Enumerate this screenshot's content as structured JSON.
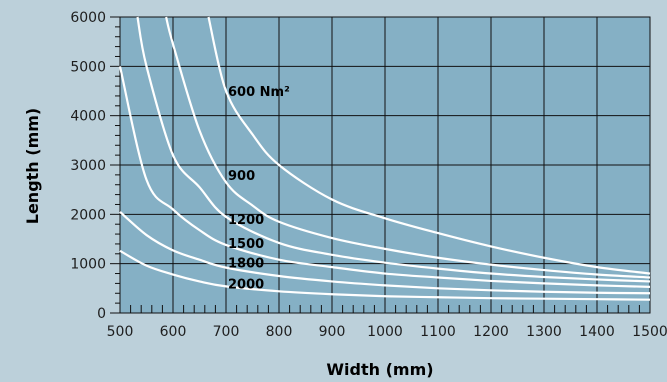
{
  "chart_data": {
    "type": "line",
    "title": "",
    "xlabel": "Width (mm)",
    "ylabel": "Length (mm)",
    "xlim": [
      500,
      1500
    ],
    "ylim": [
      0,
      6000
    ],
    "x_ticks": [
      500,
      600,
      700,
      800,
      900,
      1000,
      1100,
      1200,
      1300,
      1400,
      1500
    ],
    "y_ticks": [
      0,
      1000,
      2000,
      3000,
      4000,
      5000,
      6000
    ],
    "grid": true,
    "colors": {
      "plot_bg": "#85b0c5",
      "page_bg": "#bcd0da",
      "grid": "#111111",
      "curve": "#ffffff"
    },
    "series": [
      {
        "name": "600 Nm²",
        "x": [
          667,
          700,
          750,
          800,
          900,
          1000,
          1100,
          1200,
          1300,
          1400,
          1500
        ],
        "y": [
          6000,
          4500,
          3620,
          3000,
          2300,
          1920,
          1620,
          1350,
          1120,
          930,
          800
        ]
      },
      {
        "name": "900",
        "x": [
          587,
          600,
          650,
          700,
          750,
          800,
          900,
          1000,
          1100,
          1200,
          1300,
          1400,
          1500
        ],
        "y": [
          6000,
          5450,
          3700,
          2650,
          2180,
          1850,
          1520,
          1300,
          1120,
          980,
          870,
          780,
          720
        ]
      },
      {
        "name": "1200",
        "x": [
          533,
          550,
          600,
          650,
          700,
          800,
          900,
          1000,
          1100,
          1200,
          1300,
          1400,
          1500
        ],
        "y": [
          6000,
          5000,
          3200,
          2550,
          1950,
          1420,
          1180,
          1020,
          900,
          800,
          730,
          680,
          640
        ]
      },
      {
        "name": "1500",
        "x": [
          500,
          550,
          600,
          650,
          700,
          800,
          900,
          1000,
          1100,
          1200,
          1300,
          1400,
          1500
        ],
        "y": [
          5000,
          2700,
          2100,
          1680,
          1380,
          1080,
          930,
          800,
          720,
          650,
          600,
          560,
          530
        ]
      },
      {
        "name": "1800",
        "x": [
          500,
          550,
          600,
          650,
          700,
          800,
          900,
          1000,
          1100,
          1200,
          1300,
          1400,
          1500
        ],
        "y": [
          2050,
          1580,
          1270,
          1080,
          920,
          750,
          640,
          560,
          500,
          460,
          430,
          410,
          400
        ]
      },
      {
        "name": "2000",
        "x": [
          500,
          550,
          600,
          650,
          700,
          800,
          900,
          1000,
          1100,
          1200,
          1300,
          1400,
          1500
        ],
        "y": [
          1260,
          960,
          780,
          640,
          540,
          440,
          380,
          340,
          320,
          300,
          290,
          280,
          270
        ]
      }
    ],
    "curve_labels": [
      {
        "text": "600 Nm²",
        "x": 700,
        "y": 4400
      },
      {
        "text": "900",
        "x": 700,
        "y": 2700
      },
      {
        "text": "1200",
        "x": 700,
        "y": 1800
      },
      {
        "text": "1500",
        "x": 700,
        "y": 1320
      },
      {
        "text": "1800",
        "x": 700,
        "y": 920
      },
      {
        "text": "2000",
        "x": 700,
        "y": 500
      }
    ]
  }
}
